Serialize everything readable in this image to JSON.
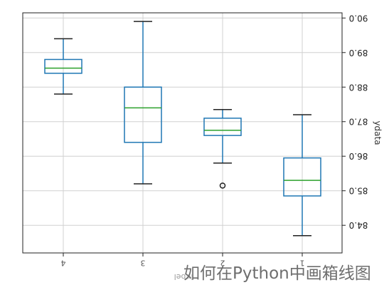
{
  "chart_data": {
    "type": "box",
    "categories": [
      "4",
      "3",
      "2",
      "1"
    ],
    "xlabel": "label",
    "ylabel": "ydata",
    "ylim": [
      83.2,
      90.15
    ],
    "yticks": [
      "84.0",
      "85.0",
      "86.0",
      "87.0",
      "88.0",
      "89.0",
      "90.0"
    ],
    "yticks_values": [
      84.0,
      85.0,
      86.0,
      87.0,
      88.0,
      89.0,
      90.0
    ],
    "grid": true,
    "boxes": [
      {
        "category": "4",
        "whisker_low": 87.8,
        "q1": 88.4,
        "median": 88.55,
        "q3": 88.8,
        "whisker_high": 89.4,
        "outliers": []
      },
      {
        "category": "3",
        "whisker_low": 85.2,
        "q1": 86.4,
        "median": 87.4,
        "q3": 88.0,
        "whisker_high": 89.9,
        "outliers": []
      },
      {
        "category": "2",
        "whisker_low": 85.8,
        "q1": 86.6,
        "median": 86.75,
        "q3": 87.1,
        "whisker_high": 87.35,
        "outliers": [
          85.15
        ]
      },
      {
        "category": "1",
        "whisker_low": 83.7,
        "q1": 84.85,
        "median": 85.3,
        "q3": 85.95,
        "whisker_high": 87.2,
        "outliers": []
      }
    ],
    "colors": {
      "box": "#1f77b4",
      "median": "#2ca02c",
      "grid": "#d0d0d0",
      "axis": "#222222"
    }
  },
  "watermark_text": "如何在Python中画箱线图"
}
